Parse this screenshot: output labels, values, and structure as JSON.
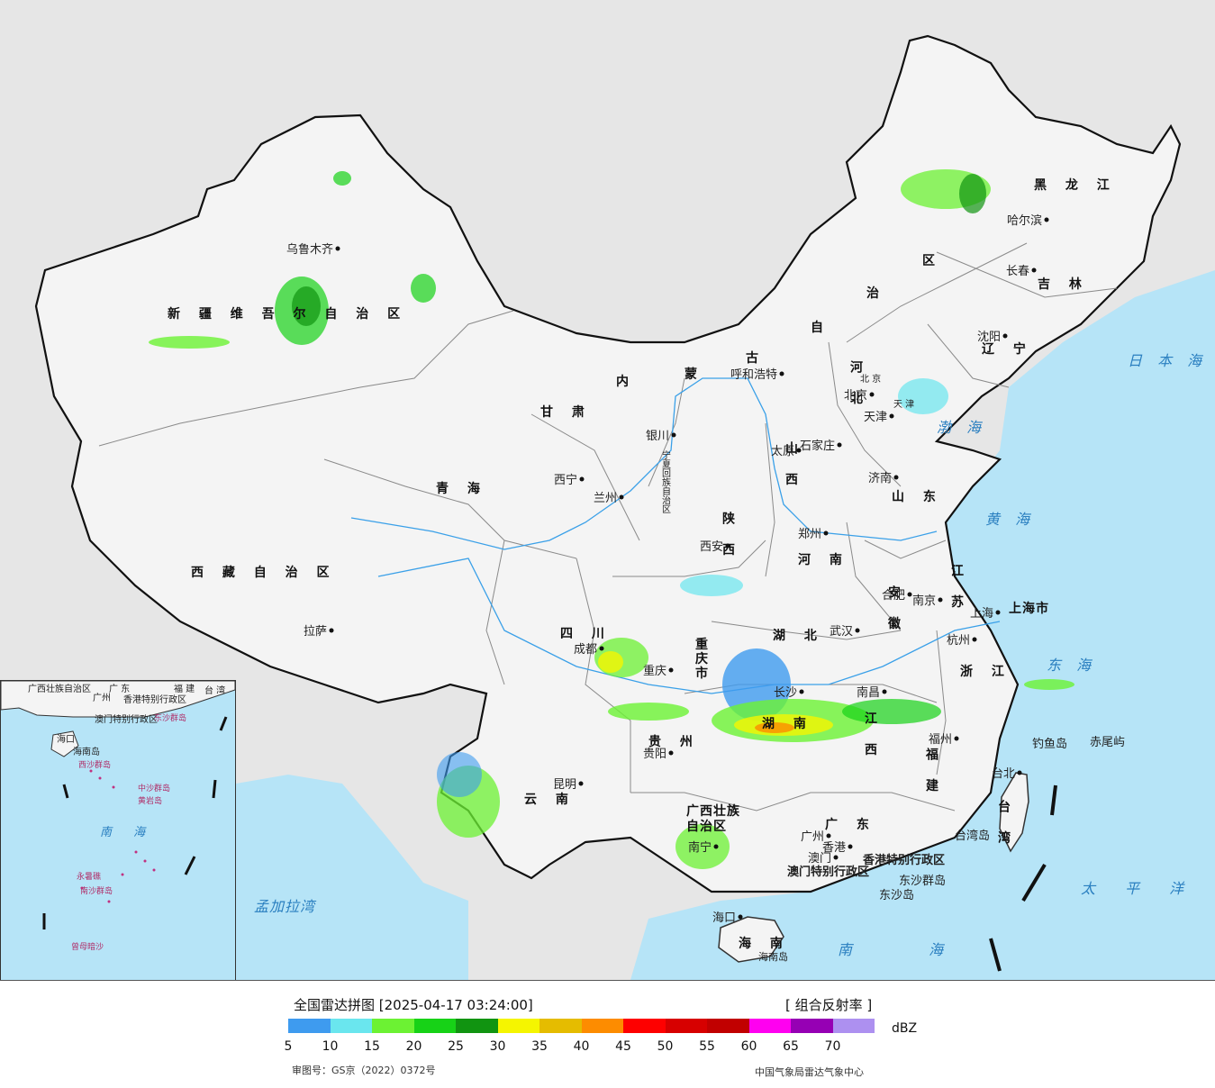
{
  "legend": {
    "title": "全国雷达拼图 [2025-04-17 03:24:00]",
    "product": "[ 组合反射率 ]",
    "unit": "dBZ",
    "ticks": [
      "5",
      "10",
      "15",
      "20",
      "25",
      "30",
      "35",
      "40",
      "45",
      "50",
      "55",
      "60",
      "65",
      "70"
    ],
    "colors": [
      "#3e9bef",
      "#6ae6ee",
      "#6cf233",
      "#17d217",
      "#119411",
      "#f5f500",
      "#e5bc00",
      "#fd8c00",
      "#fe0000",
      "#d70000",
      "#c10000",
      "#ff00f0",
      "#9600b4",
      "#ad90f0"
    ],
    "approval": "审图号：GS京（2022）0372号",
    "agency": "中国气象局雷达气象中心"
  },
  "map": {
    "colors": {
      "sea": "#b6e4f7",
      "land": "#f4f4f4",
      "outside": "#e6e6e6",
      "border": "#111111",
      "province": "#8a8a8a",
      "river": "#3aa0e8"
    },
    "provinces": [
      "新 疆 维 吾 尔 自 治 区",
      "西 藏 自 治 区",
      "青 海",
      "甘 肃",
      "四 川",
      "云 南",
      "贵 州",
      "广西壮族",
      "自治区",
      "广 东",
      "湖 南",
      "湖 北",
      "江 西",
      "福 建",
      "浙 江",
      "安 徽",
      "江 苏",
      "山 东",
      "河 南",
      "陕 西",
      "山 西",
      "河 北",
      "辽 宁",
      "吉 林",
      "黑 龙 江",
      "内",
      "蒙",
      "古",
      "自",
      "治",
      "区",
      "重",
      "庆",
      "市",
      "上海市",
      "宁夏回族自治区",
      "海 南",
      "台 湾",
      "北 京",
      "天 津"
    ],
    "cities": [
      "乌鲁木齐",
      "拉萨",
      "西宁",
      "兰州",
      "银川",
      "呼和浩特",
      "北京",
      "天津",
      "石家庄",
      "太原",
      "济南",
      "郑州",
      "西安",
      "成都",
      "重庆",
      "贵阳",
      "昆明",
      "南宁",
      "广州",
      "香港",
      "澳门",
      "长沙",
      "武汉",
      "南昌",
      "合肥",
      "南京",
      "上海",
      "杭州",
      "福州",
      "台北",
      "沈阳",
      "长春",
      "哈尔滨",
      "海口"
    ],
    "seas": [
      "日 本 海",
      "黄 海",
      "东 海",
      "南 海",
      "太 平 洋",
      "渤 海",
      "孟加拉湾"
    ],
    "extra": [
      "香港特别行政区",
      "澳门特别行政区",
      "东沙群岛",
      "东沙岛",
      "台湾岛",
      "钓鱼岛",
      "赤尾屿",
      "海南岛"
    ],
    "inset": [
      "广西壮族自治区",
      "广 东",
      "福 建",
      "台 湾",
      "广州",
      "香港特别行政区",
      "澳门特别行政区",
      "东沙群岛",
      "海口",
      "海南岛",
      "西沙群岛",
      "中沙群岛",
      "黄岩岛",
      "南 海",
      "南沙群岛",
      "曾母暗沙",
      "永暑礁"
    ]
  }
}
